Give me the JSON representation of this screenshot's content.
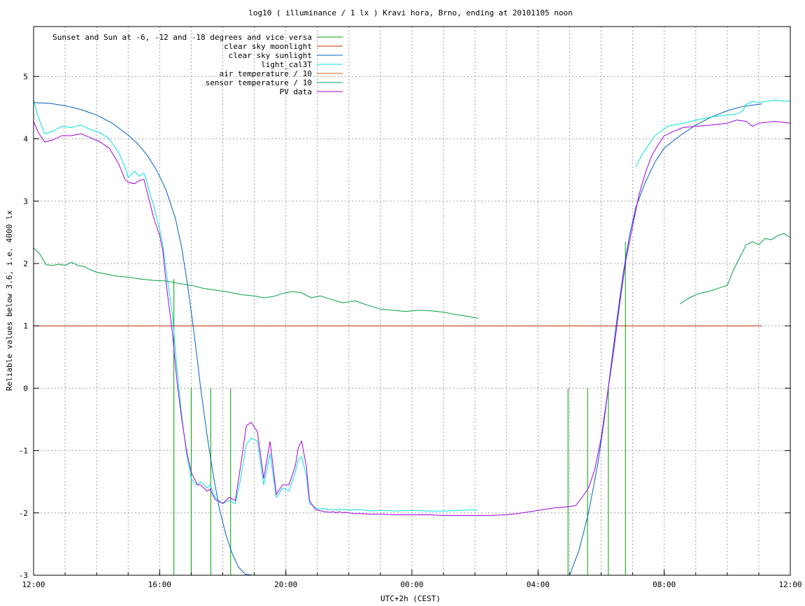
{
  "chart_data": {
    "type": "line",
    "title": "log10 ( illuminance / 1 lx ) Kravi hora, Brno, ending at 20101105 noon",
    "xlabel": "UTC+2h (CEST)",
    "ylabel": "Reliable values below 3.6, i.e. 4000 lx",
    "x_unit": "hours since 12:00 UTC+2h (CEST)",
    "xlim": [
      0,
      24
    ],
    "ylim": [
      -3,
      5.8
    ],
    "x_ticks": [
      {
        "value": 0,
        "label": "12:00"
      },
      {
        "value": 4,
        "label": "16:00"
      },
      {
        "value": 8,
        "label": "20:00"
      },
      {
        "value": 12,
        "label": "00:00"
      },
      {
        "value": 16,
        "label": "04:00"
      },
      {
        "value": 20,
        "label": "08:00"
      },
      {
        "value": 24,
        "label": "12:00"
      }
    ],
    "y_ticks": [
      {
        "value": -3,
        "label": "-3"
      },
      {
        "value": -2,
        "label": "-2"
      },
      {
        "value": -1,
        "label": "-1"
      },
      {
        "value": 0,
        "label": "0"
      },
      {
        "value": 1,
        "label": "1"
      },
      {
        "value": 2,
        "label": "2"
      },
      {
        "value": 3,
        "label": "3"
      },
      {
        "value": 4,
        "label": "4"
      },
      {
        "value": 5,
        "label": "5"
      }
    ],
    "x_minor_grid_step": 1,
    "grid": true,
    "legend_position": "top-left",
    "series": [
      {
        "name": "Sunset and Sun at -6, -12 and -18 degrees and vice versa",
        "color": "#00a000",
        "style": "impulses",
        "x": [
          4.45,
          5.0,
          5.62,
          6.25,
          16.95,
          17.57,
          18.23,
          18.77
        ],
        "y": [
          1.75,
          0.0,
          0.0,
          0.0,
          0.0,
          0.0,
          0.0,
          2.35
        ]
      },
      {
        "name": "clear sky moonlight",
        "color": "#c03000",
        "x": [
          0,
          23.1
        ],
        "y": [
          1.0,
          1.0
        ]
      },
      {
        "name": "clear sky sunlight",
        "color": "#0060c0",
        "x": [
          0,
          0.5,
          1.0,
          1.5,
          2.0,
          2.5,
          3.0,
          3.3,
          3.6,
          3.9,
          4.2,
          4.5,
          4.7,
          4.9,
          5.1,
          5.3,
          5.5,
          5.7,
          5.9,
          6.1,
          6.3,
          6.5,
          6.7,
          6.93,
          17.0,
          17.3,
          17.6,
          17.9,
          18.1,
          18.3,
          18.5,
          18.7,
          18.9,
          19.1,
          19.4,
          19.7,
          20.0,
          20.5,
          21.0,
          21.5,
          22.0,
          22.5,
          23.1
        ],
        "y": [
          4.58,
          4.57,
          4.53,
          4.47,
          4.38,
          4.25,
          4.06,
          3.92,
          3.74,
          3.5,
          3.18,
          2.72,
          2.25,
          1.6,
          0.85,
          0.0,
          -0.75,
          -1.4,
          -1.95,
          -2.35,
          -2.65,
          -2.87,
          -2.98,
          -3.0,
          -3.0,
          -2.6,
          -2.0,
          -1.2,
          -0.5,
          0.3,
          1.1,
          1.85,
          2.45,
          2.9,
          3.3,
          3.62,
          3.85,
          4.05,
          4.22,
          4.35,
          4.45,
          4.52,
          4.56
        ]
      },
      {
        "name": "light_cal3T",
        "color": "#00e0e0",
        "x": [
          0,
          0.15,
          0.35,
          0.6,
          0.9,
          1.2,
          1.5,
          1.8,
          2.1,
          2.4,
          2.7,
          2.9,
          3.0,
          3.2,
          3.35,
          3.5,
          3.6,
          3.7,
          3.8,
          3.9,
          4.0,
          4.1,
          4.2,
          4.4,
          4.55,
          4.7,
          4.85,
          5.0,
          5.1,
          5.2,
          5.3,
          5.4,
          5.5,
          5.6,
          5.75,
          6.0,
          6.2,
          6.4,
          6.55,
          6.75,
          6.9,
          7.1,
          7.3,
          7.5,
          7.7,
          7.9,
          8.1,
          8.3,
          8.4,
          8.5,
          8.65,
          8.75,
          8.85,
          8.95,
          9.05,
          9.2,
          9.4,
          9.5,
          9.6,
          9.7,
          9.8,
          9.9,
          10.0,
          10.2,
          10.4,
          10.7,
          11.0,
          11.5,
          12.0,
          12.5,
          13.0,
          13.5,
          14.0,
          14.07,
          19.1,
          19.3,
          19.5,
          19.7,
          19.9,
          20.1,
          20.3,
          20.6,
          21.0,
          21.5,
          22.0,
          22.3,
          22.5,
          22.6,
          22.8,
          23.0,
          23.5,
          24.0
        ],
        "y": [
          4.62,
          4.35,
          4.08,
          4.12,
          4.2,
          4.18,
          4.22,
          4.15,
          4.1,
          4.0,
          3.78,
          3.55,
          3.38,
          3.48,
          3.4,
          3.45,
          3.3,
          3.1,
          2.95,
          2.75,
          2.55,
          2.3,
          1.9,
          1.2,
          0.3,
          -0.45,
          -1.05,
          -1.45,
          -1.52,
          -1.55,
          -1.5,
          -1.55,
          -1.6,
          -1.55,
          -1.75,
          -1.85,
          -1.8,
          -1.85,
          -1.5,
          -0.9,
          -0.8,
          -0.85,
          -1.55,
          -1.05,
          -1.75,
          -1.6,
          -1.65,
          -1.35,
          -1.15,
          -1.1,
          -1.4,
          -1.85,
          -1.88,
          -1.92,
          -1.94,
          -1.93,
          -1.95,
          -1.94,
          -1.96,
          -1.94,
          -1.95,
          -1.94,
          -1.96,
          -1.95,
          -1.95,
          -1.97,
          -1.96,
          -1.97,
          -1.96,
          -1.97,
          -1.97,
          -1.96,
          -1.95,
          -1.97,
          3.55,
          3.75,
          3.9,
          4.05,
          4.12,
          4.2,
          4.22,
          4.25,
          4.3,
          4.35,
          4.38,
          4.4,
          4.45,
          4.55,
          4.6,
          4.58,
          4.62,
          4.6
        ]
      },
      {
        "name": "air temperature / 10",
        "color": "#d06020",
        "x": [],
        "y": []
      },
      {
        "name": "sensor temperature / 10",
        "color": "#00a080",
        "x": [],
        "y": []
      },
      {
        "name": "PV data",
        "color": "#a000e0",
        "x": [
          0,
          0.15,
          0.35,
          0.6,
          0.9,
          1.2,
          1.5,
          1.8,
          2.1,
          2.4,
          2.7,
          2.9,
          3.0,
          3.2,
          3.35,
          3.5,
          3.6,
          3.7,
          3.8,
          3.9,
          4.0,
          4.1,
          4.2,
          4.4,
          4.55,
          4.7,
          4.85,
          5.0,
          5.1,
          5.2,
          5.3,
          5.4,
          5.5,
          5.6,
          5.75,
          6.0,
          6.2,
          6.4,
          6.55,
          6.75,
          6.9,
          7.1,
          7.3,
          7.5,
          7.7,
          7.9,
          8.1,
          8.3,
          8.4,
          8.5,
          8.65,
          8.75,
          8.85,
          8.95,
          9.05,
          9.2,
          9.4,
          9.5,
          9.6,
          9.7,
          9.8,
          9.9,
          10.0,
          10.2,
          10.4,
          10.7,
          11.0,
          11.5,
          12.0,
          12.5,
          13.0,
          13.5,
          14.0,
          14.5,
          15.0,
          15.5,
          16.0,
          16.5,
          17.0,
          17.2,
          17.4,
          17.6,
          17.8,
          18.0,
          18.2,
          18.4,
          18.6,
          18.8,
          19.0,
          19.2,
          19.4,
          19.6,
          19.8,
          20.0,
          20.3,
          20.6,
          21.0,
          21.5,
          22.0,
          22.3,
          22.6,
          22.8,
          23.0,
          23.5,
          24.0
        ],
        "y": [
          4.28,
          4.1,
          3.95,
          3.98,
          4.05,
          4.05,
          4.08,
          4.02,
          3.95,
          3.85,
          3.6,
          3.35,
          3.3,
          3.28,
          3.33,
          3.35,
          3.15,
          2.95,
          2.75,
          2.6,
          2.45,
          2.2,
          1.7,
          0.9,
          0.1,
          -0.5,
          -1.0,
          -1.35,
          -1.45,
          -1.55,
          -1.55,
          -1.6,
          -1.65,
          -1.62,
          -1.78,
          -1.85,
          -1.75,
          -1.8,
          -1.3,
          -0.6,
          -0.55,
          -0.7,
          -1.45,
          -0.85,
          -1.7,
          -1.55,
          -1.55,
          -1.25,
          -0.95,
          -0.85,
          -1.25,
          -1.8,
          -1.88,
          -1.95,
          -1.96,
          -1.98,
          -1.99,
          -1.98,
          -2.0,
          -1.98,
          -2.0,
          -1.99,
          -2.0,
          -2.01,
          -2.01,
          -2.02,
          -2.02,
          -2.03,
          -2.03,
          -2.03,
          -2.04,
          -2.04,
          -2.04,
          -2.04,
          -2.03,
          -2.0,
          -1.96,
          -1.92,
          -1.9,
          -1.88,
          -1.75,
          -1.6,
          -1.3,
          -0.8,
          -0.1,
          0.6,
          1.4,
          2.1,
          2.6,
          3.1,
          3.45,
          3.72,
          3.9,
          4.05,
          4.12,
          4.18,
          4.2,
          4.22,
          4.25,
          4.3,
          4.28,
          4.2,
          4.25,
          4.28,
          4.25
        ]
      },
      {
        "name": "",
        "color": "#00a040",
        "x": [
          0,
          0.2,
          0.4,
          0.6,
          0.8,
          1.0,
          1.2,
          1.4,
          1.6,
          1.8,
          2.0,
          2.3,
          2.6,
          3.0,
          3.4,
          3.8,
          4.2,
          4.6,
          5.0,
          5.4,
          5.8,
          6.2,
          6.6,
          7.0,
          7.3,
          7.6,
          7.9,
          8.2,
          8.5,
          8.8,
          9.1,
          9.4,
          9.8,
          10.2,
          10.6,
          11.0,
          11.4,
          11.8,
          12.2,
          12.6,
          13.0,
          13.4,
          13.8,
          14.1,
          20.5,
          20.8,
          21.1,
          21.4,
          21.7,
          22.0,
          22.2,
          22.4,
          22.6,
          22.8,
          23.0,
          23.2,
          23.4,
          23.6,
          23.8,
          24.0
        ],
        "y": [
          2.25,
          2.15,
          1.98,
          1.97,
          1.99,
          1.97,
          2.02,
          1.97,
          1.95,
          1.9,
          1.86,
          1.83,
          1.8,
          1.78,
          1.75,
          1.73,
          1.72,
          1.68,
          1.65,
          1.6,
          1.57,
          1.54,
          1.5,
          1.48,
          1.45,
          1.47,
          1.52,
          1.55,
          1.53,
          1.45,
          1.48,
          1.43,
          1.37,
          1.4,
          1.33,
          1.27,
          1.25,
          1.23,
          1.25,
          1.24,
          1.22,
          1.18,
          1.15,
          1.12,
          1.35,
          1.45,
          1.52,
          1.55,
          1.6,
          1.65,
          1.9,
          2.1,
          2.3,
          2.35,
          2.3,
          2.4,
          2.38,
          2.45,
          2.48,
          2.42
        ]
      }
    ]
  }
}
